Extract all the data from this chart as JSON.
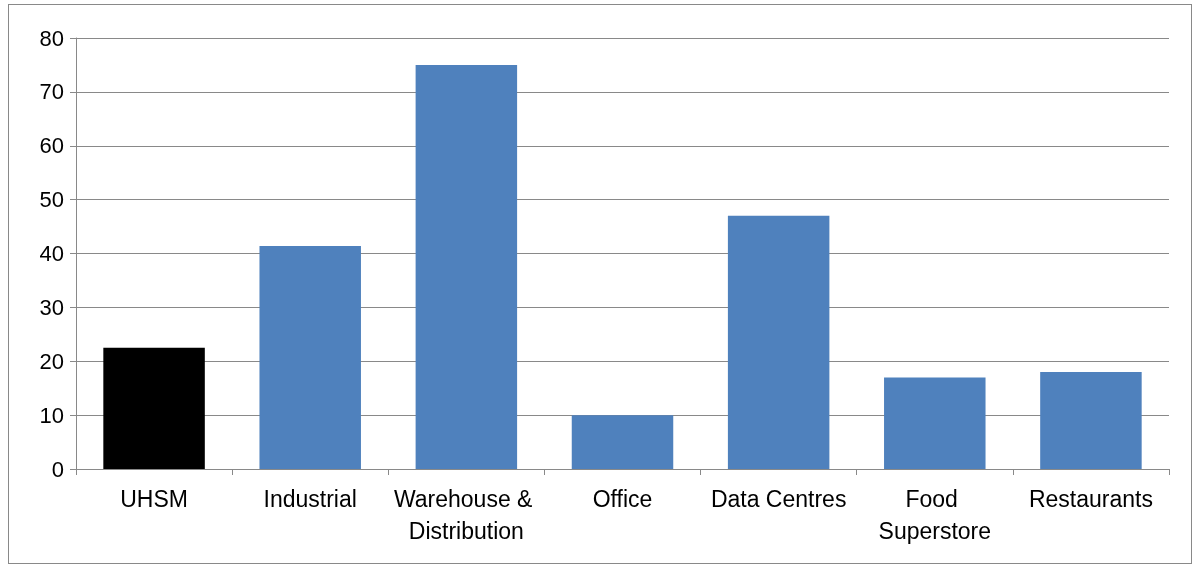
{
  "chart_data": {
    "type": "bar",
    "categories": [
      "UHSM",
      "Industrial",
      "Warehouse & Distribution",
      "Office",
      "Data Centres",
      "Food Superstore",
      "Restaurants"
    ],
    "values": [
      22.5,
      41.4,
      75,
      10,
      47,
      17,
      18
    ],
    "colors": [
      "#000000",
      "#4f81bd",
      "#4f81bd",
      "#4f81bd",
      "#4f81bd",
      "#4f81bd",
      "#4f81bd"
    ],
    "ylim": [
      0,
      80
    ],
    "yticks": [
      0,
      10,
      20,
      30,
      40,
      50,
      60,
      70,
      80
    ],
    "grid": "y"
  }
}
